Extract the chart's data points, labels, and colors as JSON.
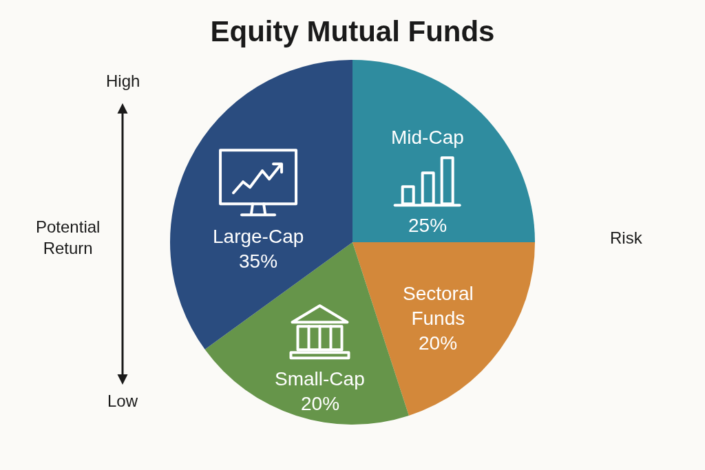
{
  "chart_data": {
    "type": "pie",
    "title": "Equity Mutual Funds",
    "categories": [
      "Mid-Cap",
      "Sectoral Funds",
      "Small-Cap",
      "Large-Cap"
    ],
    "values": [
      25,
      20,
      20,
      35
    ],
    "value_labels": [
      "25%",
      "20%",
      "20%",
      "35%"
    ],
    "colors": [
      "#2f8c9f",
      "#d3883a",
      "#66954a",
      "#2a4c7f"
    ],
    "annotations": [
      "High",
      "Low",
      "Potential Return",
      "Risk"
    ]
  }
}
